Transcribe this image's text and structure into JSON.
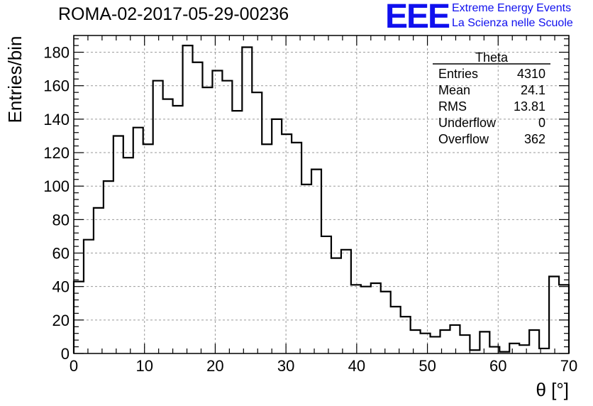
{
  "header": {
    "title": "ROMA-02-2017-05-29-00236",
    "logo_text": "EEE",
    "logo_line1": "Extreme Energy Events",
    "logo_line2": "La Scienza nelle Scuole",
    "logo_color": "#1010ee"
  },
  "stats": {
    "name": "Theta",
    "rows": [
      {
        "label": "Entries",
        "value": "4310"
      },
      {
        "label": "Mean",
        "value": "24.1"
      },
      {
        "label": "RMS",
        "value": "13.81"
      },
      {
        "label": "Underflow",
        "value": "0"
      },
      {
        "label": "Overflow",
        "value": "362"
      }
    ]
  },
  "chart_data": {
    "type": "histogram",
    "title": "ROMA-02-2017-05-29-00236",
    "xlabel": "θ [°]",
    "ylabel": "Entries/bin",
    "xlim": [
      0,
      70
    ],
    "ylim": [
      0,
      190
    ],
    "bin_width": 1.4,
    "xticks": [
      0,
      10,
      20,
      30,
      40,
      50,
      60,
      70
    ],
    "yticks": [
      0,
      20,
      40,
      60,
      80,
      100,
      120,
      140,
      160,
      180
    ],
    "grid": true,
    "legend": "top-right stats box",
    "values": [
      43,
      68,
      87,
      103,
      130,
      117,
      135,
      125,
      163,
      152,
      148,
      184,
      174,
      159,
      169,
      163,
      145,
      183,
      156,
      125,
      140,
      131,
      126,
      101,
      110,
      70,
      57,
      62,
      41,
      40,
      42,
      37,
      28,
      22,
      14,
      12,
      10,
      14,
      17,
      11,
      2,
      13,
      4,
      1,
      6,
      5,
      14,
      3,
      46,
      41
    ]
  }
}
